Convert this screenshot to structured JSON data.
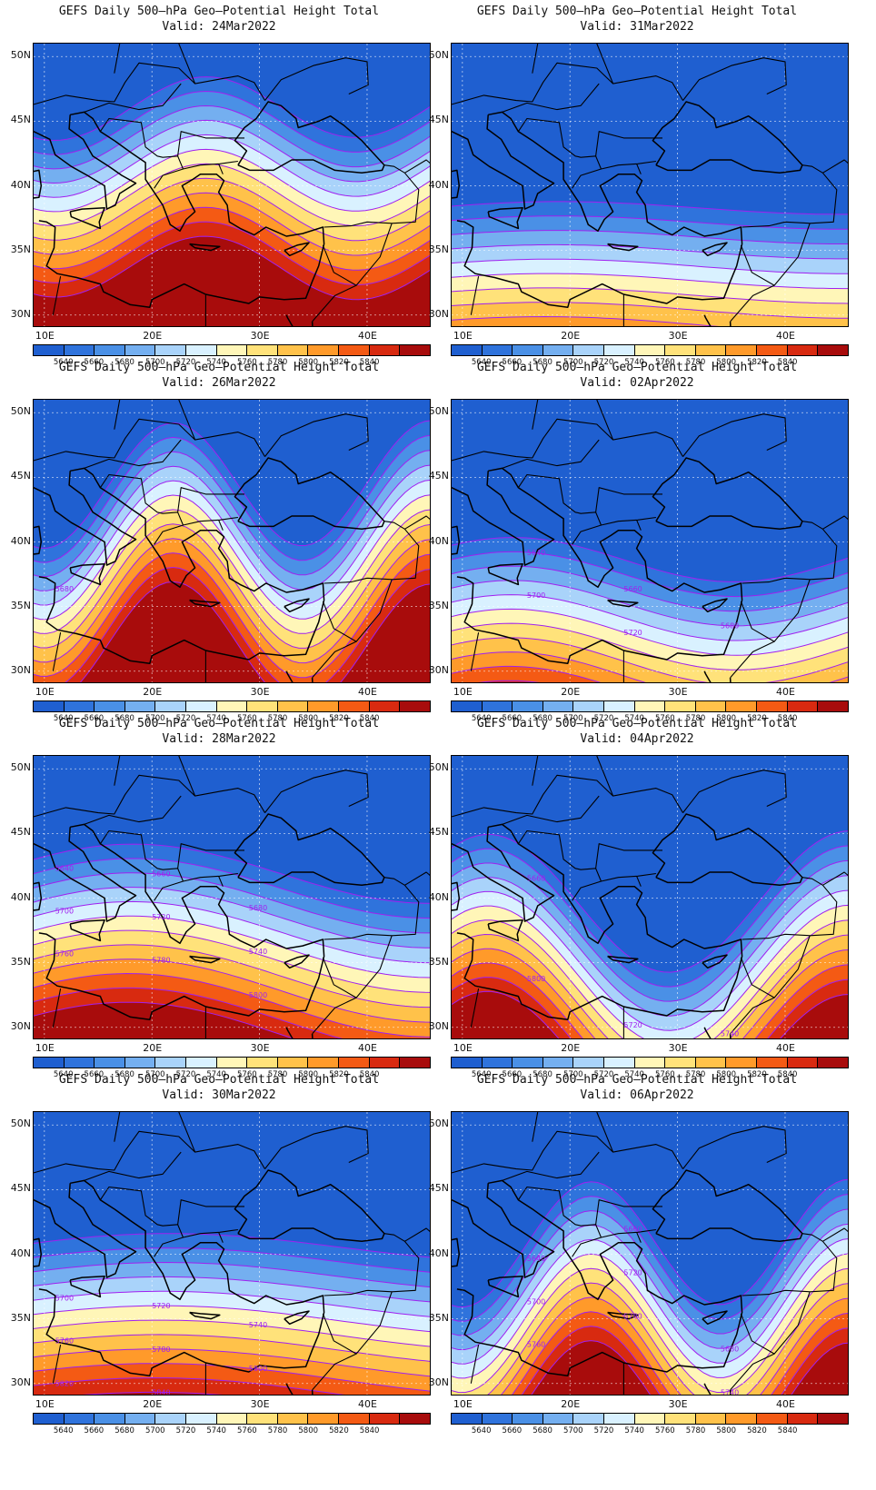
{
  "title_line": "GEFS Daily 500–hPa Geo–Potential Height Total",
  "valid_prefix": "Valid:",
  "lat_labels": [
    "50N",
    "45N",
    "40N",
    "35N",
    "30N"
  ],
  "lon_labels": [
    "10E",
    "20E",
    "30E",
    "40E"
  ],
  "colorbar": {
    "levels": [
      "5640",
      "5660",
      "5680",
      "5700",
      "5720",
      "5740",
      "5760",
      "5780",
      "5800",
      "5820",
      "5840"
    ],
    "colors": [
      "#1f5fd0",
      "#2f73dc",
      "#4a90e6",
      "#74aff0",
      "#a9d3fa",
      "#d9f1ff",
      "#fff6b8",
      "#ffe27a",
      "#ffc24a",
      "#ff9a2a",
      "#f45a14",
      "#d82a10",
      "#a80c0c"
    ]
  },
  "contour_color": "#a020f0",
  "coastline_color": "#000000",
  "panels": [
    {
      "date": "24Mar2022",
      "shift": -2.2,
      "amp": -0.8,
      "wave": 1.2,
      "labels": []
    },
    {
      "date": "31Mar2022",
      "shift": 5.6,
      "amp": 0.2,
      "wave": 0.6,
      "labels": []
    },
    {
      "date": "26Mar2022",
      "shift": -0.6,
      "amp": -1.6,
      "wave": 1.4,
      "labels": [
        "5680"
      ]
    },
    {
      "date": "02Apr2022",
      "shift": 5.2,
      "amp": 0.6,
      "wave": 0.8,
      "labels": [
        "5640",
        "5660",
        "5680",
        "5700",
        "5720"
      ]
    },
    {
      "date": "28Mar2022",
      "shift": 2.0,
      "amp": 0.8,
      "wave": 0.6,
      "labels": [
        "5640",
        "5660",
        "5680",
        "5700",
        "5720",
        "5740",
        "5760",
        "5780",
        "5800"
      ]
    },
    {
      "date": "04Apr2022",
      "shift": 4.2,
      "amp": 1.8,
      "wave": 1.0,
      "labels": [
        "5660",
        "5720",
        "5740",
        "5800",
        "5840"
      ]
    },
    {
      "date": "30Mar2022",
      "shift": 3.4,
      "amp": 0.4,
      "wave": 0.5,
      "labels": [
        "5700",
        "5720",
        "5740",
        "5760",
        "5780",
        "5800",
        "5820",
        "5840"
      ]
    },
    {
      "date": "06Apr2022",
      "shift": 3.0,
      "amp": -1.6,
      "wave": 1.4,
      "labels": [
        "5640",
        "5660",
        "5680",
        "5700",
        "5720",
        "5740",
        "5760",
        "5780"
      ]
    }
  ]
}
